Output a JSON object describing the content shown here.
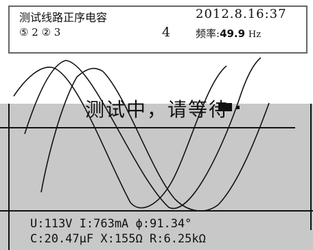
{
  "header": {
    "title": "测试线路正序电容",
    "timestamp": "2012.8.16:37",
    "mode_indicators": "⑤ 2 ② 3",
    "channel": "4",
    "frequency_label": "频率:",
    "frequency_value": "49.9",
    "frequency_unit": "Hz"
  },
  "status": {
    "message": "测试中，请等待"
  },
  "measurements": {
    "line1": "U:113V  I:763mA  ϕ:91.34°",
    "line2": "C:20.47μF X:155Ω  R:6.25kΩ"
  },
  "colors": {
    "background": "#ffffff",
    "panel": "#c8c8c8",
    "ink": "#111111"
  }
}
